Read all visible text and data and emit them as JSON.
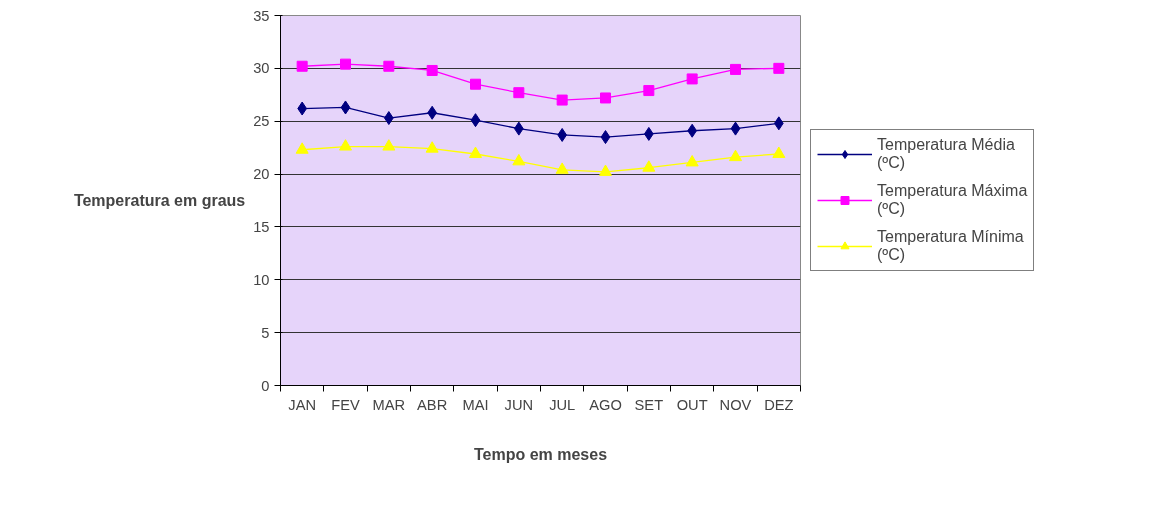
{
  "chart_data": {
    "type": "line",
    "xlabel": "Tempo em meses",
    "ylabel": "Temperatura em graus",
    "categories": [
      "JAN",
      "FEV",
      "MAR",
      "ABR",
      "MAI",
      "JUN",
      "JUL",
      "AGO",
      "SET",
      "OUT",
      "NOV",
      "DEZ"
    ],
    "series": [
      {
        "name": "Temperatura Média (ºC)",
        "color": "#000080",
        "marker": "diamond",
        "values": [
          26.2,
          26.3,
          25.3,
          25.8,
          25.1,
          24.3,
          23.7,
          23.5,
          23.8,
          24.1,
          24.3,
          24.8
        ]
      },
      {
        "name": "Temperatura Máxima (ºC)",
        "color": "#ff00ff",
        "marker": "square",
        "values": [
          30.2,
          30.4,
          30.2,
          29.8,
          28.5,
          27.7,
          27.0,
          27.2,
          27.9,
          29.0,
          29.9,
          30.0
        ]
      },
      {
        "name": "Temperatura Mínima (ºC)",
        "color": "#ffff00",
        "marker": "triangle",
        "values": [
          22.3,
          22.6,
          22.6,
          22.4,
          21.9,
          21.2,
          20.4,
          20.2,
          20.6,
          21.1,
          21.6,
          21.9
        ]
      }
    ],
    "ylim": [
      0,
      35
    ],
    "yticks": [
      0,
      5,
      10,
      15,
      20,
      25,
      30,
      35
    ],
    "grid": "y",
    "legend": "right"
  }
}
